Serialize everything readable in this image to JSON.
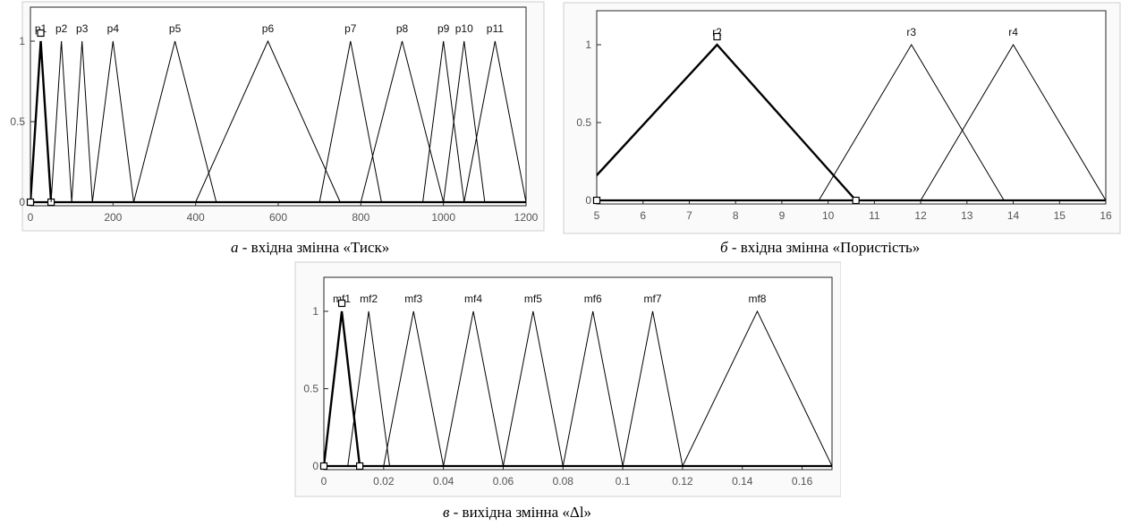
{
  "captions": [
    {
      "letter": "а",
      "text": " - вхідна змінна «Тиск»"
    },
    {
      "letter": "б",
      "text": " - вхідна змінна «Пористість»"
    },
    {
      "letter": "в",
      "text": " - вихідна змінна «Δl»"
    }
  ],
  "chart_data": [
    {
      "type": "line",
      "chart_kind": "triangular membership functions",
      "title": "",
      "xlabel": "",
      "ylabel": "",
      "xlim": [
        0,
        1200
      ],
      "ylim": [
        0,
        1
      ],
      "xticks": [
        0,
        200,
        400,
        600,
        800,
        1000,
        1200
      ],
      "yticks": [
        0,
        0.5,
        1
      ],
      "grid": false,
      "selected": "p1",
      "series": [
        {
          "name": "p1",
          "points": [
            [
              0,
              0
            ],
            [
              25,
              1
            ],
            [
              50,
              0
            ]
          ]
        },
        {
          "name": "p2",
          "points": [
            [
              50,
              0
            ],
            [
              75,
              1
            ],
            [
              100,
              0
            ]
          ]
        },
        {
          "name": "p3",
          "points": [
            [
              100,
              0
            ],
            [
              125,
              1
            ],
            [
              150,
              0
            ]
          ]
        },
        {
          "name": "p4",
          "points": [
            [
              150,
              0
            ],
            [
              200,
              1
            ],
            [
              250,
              0
            ]
          ]
        },
        {
          "name": "p5",
          "points": [
            [
              250,
              0
            ],
            [
              350,
              1
            ],
            [
              450,
              0
            ]
          ]
        },
        {
          "name": "p6",
          "points": [
            [
              400,
              0
            ],
            [
              575,
              1
            ],
            [
              750,
              0
            ]
          ]
        },
        {
          "name": "p7",
          "points": [
            [
              700,
              0
            ],
            [
              775,
              1
            ],
            [
              850,
              0
            ]
          ]
        },
        {
          "name": "p8",
          "points": [
            [
              800,
              0
            ],
            [
              900,
              1
            ],
            [
              1000,
              0
            ]
          ]
        },
        {
          "name": "p9",
          "points": [
            [
              950,
              0
            ],
            [
              1000,
              1
            ],
            [
              1050,
              0
            ]
          ]
        },
        {
          "name": "p10",
          "points": [
            [
              1000,
              0
            ],
            [
              1050,
              1
            ],
            [
              1100,
              0
            ]
          ]
        },
        {
          "name": "p11",
          "points": [
            [
              1050,
              0
            ],
            [
              1125,
              1
            ],
            [
              1200,
              0
            ]
          ]
        }
      ]
    },
    {
      "type": "line",
      "chart_kind": "triangular membership functions",
      "title": "",
      "xlabel": "",
      "ylabel": "",
      "xlim": [
        5,
        16
      ],
      "ylim": [
        0,
        1
      ],
      "xticks": [
        5,
        6,
        7,
        8,
        9,
        10,
        11,
        12,
        13,
        14,
        15,
        16
      ],
      "yticks": [
        0,
        0.5,
        1
      ],
      "grid": false,
      "selected": "r2",
      "series": [
        {
          "name": "r2",
          "points": [
            [
              4.5,
              0
            ],
            [
              7.6,
              1
            ],
            [
              10.6,
              0
            ]
          ]
        },
        {
          "name": "r3",
          "points": [
            [
              9.8,
              0
            ],
            [
              11.8,
              1
            ],
            [
              13.8,
              0
            ]
          ]
        },
        {
          "name": "r4",
          "points": [
            [
              12,
              0
            ],
            [
              14,
              1
            ],
            [
              16,
              0
            ]
          ]
        }
      ]
    },
    {
      "type": "line",
      "chart_kind": "triangular membership functions",
      "title": "",
      "xlabel": "",
      "ylabel": "",
      "xlim": [
        0,
        0.17
      ],
      "ylim": [
        0,
        1
      ],
      "xticks": [
        "0",
        "0.02",
        "0.04",
        "0.06",
        "0.08",
        "0.1",
        "0.12",
        "0.14",
        "0.16"
      ],
      "yticks": [
        0,
        0.5,
        1
      ],
      "grid": false,
      "selected": "mf1",
      "series": [
        {
          "name": "mf1",
          "points": [
            [
              0,
              0
            ],
            [
              0.006,
              1
            ],
            [
              0.012,
              0
            ]
          ]
        },
        {
          "name": "mf2",
          "points": [
            [
              0.008,
              0
            ],
            [
              0.015,
              1
            ],
            [
              0.022,
              0
            ]
          ]
        },
        {
          "name": "mf3",
          "points": [
            [
              0.02,
              0
            ],
            [
              0.03,
              1
            ],
            [
              0.04,
              0
            ]
          ]
        },
        {
          "name": "mf4",
          "points": [
            [
              0.04,
              0
            ],
            [
              0.05,
              1
            ],
            [
              0.06,
              0
            ]
          ]
        },
        {
          "name": "mf5",
          "points": [
            [
              0.06,
              0
            ],
            [
              0.07,
              1
            ],
            [
              0.08,
              0
            ]
          ]
        },
        {
          "name": "mf6",
          "points": [
            [
              0.08,
              0
            ],
            [
              0.09,
              1
            ],
            [
              0.1,
              0
            ]
          ]
        },
        {
          "name": "mf7",
          "points": [
            [
              0.1,
              0
            ],
            [
              0.11,
              1
            ],
            [
              0.12,
              0
            ]
          ]
        },
        {
          "name": "mf8",
          "points": [
            [
              0.12,
              0
            ],
            [
              0.145,
              1
            ],
            [
              0.17,
              0
            ]
          ]
        }
      ]
    }
  ]
}
